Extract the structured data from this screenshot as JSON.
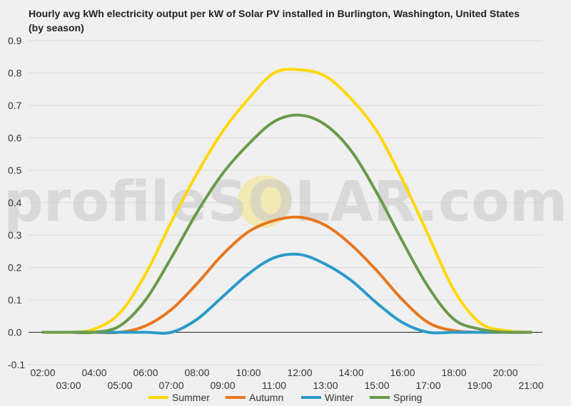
{
  "chart_data": {
    "type": "line",
    "title": "Hourly avg kWh electricity output per kW of Solar PV installed in Burlington, Washington, United States (by season)",
    "xlabel": "",
    "ylabel": "",
    "x": [
      "02:00",
      "03:00",
      "04:00",
      "05:00",
      "06:00",
      "07:00",
      "08:00",
      "09:00",
      "10:00",
      "11:00",
      "12:00",
      "13:00",
      "14:00",
      "15:00",
      "16:00",
      "17:00",
      "18:00",
      "19:00",
      "20:00",
      "21:00"
    ],
    "x_tick_labels_upper": [
      "02:00",
      "04:00",
      "06:00",
      "08:00",
      "10:00",
      "12:00",
      "14:00",
      "16:00",
      "18:00",
      "20:00"
    ],
    "x_tick_labels_lower": [
      "03:00",
      "05:00",
      "07:00",
      "09:00",
      "11:00",
      "13:00",
      "15:00",
      "17:00",
      "19:00",
      "21:00"
    ],
    "ylim": [
      -0.1,
      0.9
    ],
    "y_ticks": [
      "-0.1",
      "0.0",
      "0.1",
      "0.2",
      "0.3",
      "0.4",
      "0.5",
      "0.6",
      "0.7",
      "0.8",
      "0.9"
    ],
    "grid": true,
    "legend_position": "bottom",
    "series": [
      {
        "name": "Summer",
        "color": "#FFD700",
        "values": [
          0,
          0,
          0.01,
          0.06,
          0.18,
          0.34,
          0.49,
          0.62,
          0.72,
          0.8,
          0.81,
          0.79,
          0.72,
          0.62,
          0.47,
          0.3,
          0.13,
          0.03,
          0.005,
          0
        ]
      },
      {
        "name": "Autumn",
        "color": "#E8761E",
        "values": [
          0,
          0,
          0,
          0,
          0.02,
          0.07,
          0.15,
          0.24,
          0.31,
          0.345,
          0.355,
          0.33,
          0.27,
          0.19,
          0.1,
          0.03,
          0.005,
          0,
          0,
          0
        ]
      },
      {
        "name": "Winter",
        "color": "#2A9AC9",
        "values": [
          0,
          0,
          0,
          0,
          0,
          0,
          0.04,
          0.11,
          0.18,
          0.23,
          0.24,
          0.21,
          0.16,
          0.09,
          0.03,
          0,
          0,
          0,
          0,
          0
        ]
      },
      {
        "name": "Spring",
        "color": "#6B9A4B",
        "values": [
          0,
          0,
          0,
          0.02,
          0.1,
          0.23,
          0.37,
          0.49,
          0.58,
          0.65,
          0.67,
          0.64,
          0.56,
          0.43,
          0.28,
          0.14,
          0.04,
          0.01,
          0,
          0
        ]
      }
    ]
  },
  "watermark": "profileSOLAR.com"
}
